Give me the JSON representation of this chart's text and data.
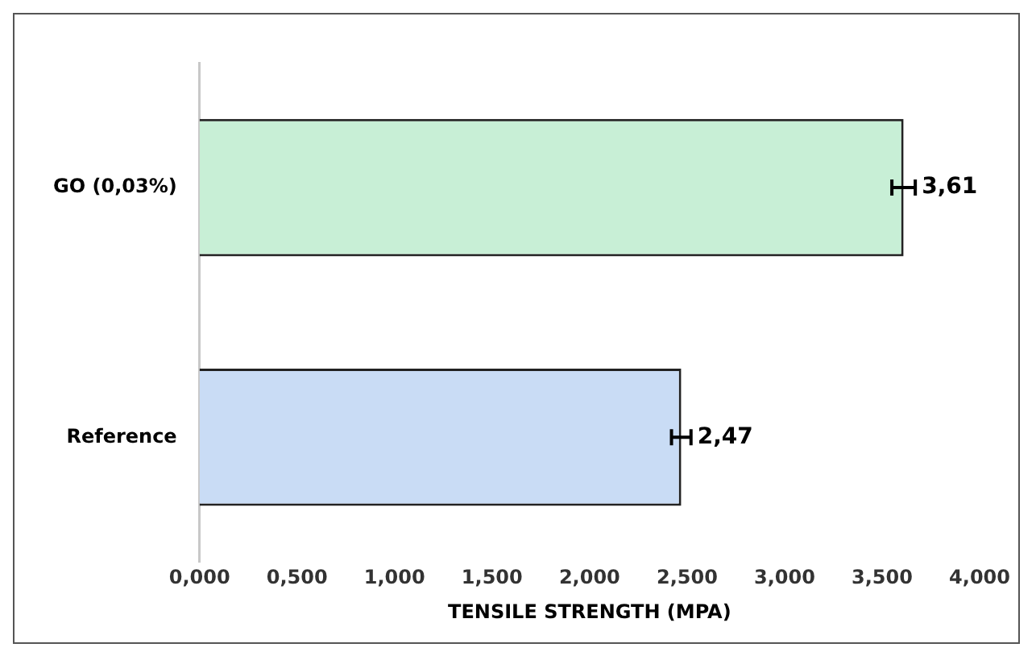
{
  "chart_data": {
    "type": "bar",
    "orientation": "horizontal",
    "xlabel": "TENSILE STRENGTH (MPA)",
    "categories": [
      "GO (0,03%)",
      "Reference"
    ],
    "values": [
      3.61,
      2.47
    ],
    "colors": [
      "#c8efd6",
      "#c9dcf5"
    ],
    "errors": [
      0.06,
      0.05
    ],
    "value_labels": [
      "3,61",
      "2,47"
    ],
    "xlim": [
      0,
      4
    ],
    "xticks": [
      {
        "value": 0,
        "label": "0,000"
      },
      {
        "value": 0.5,
        "label": "0,500"
      },
      {
        "value": 1,
        "label": "1,000"
      },
      {
        "value": 1.5,
        "label": "1,500"
      },
      {
        "value": 2,
        "label": "2,000"
      },
      {
        "value": 2.5,
        "label": "2,500"
      },
      {
        "value": 3,
        "label": "3,000"
      },
      {
        "value": 3.5,
        "label": "3,500"
      },
      {
        "value": 4,
        "label": "4,000"
      }
    ],
    "grid": false,
    "legend": false
  }
}
